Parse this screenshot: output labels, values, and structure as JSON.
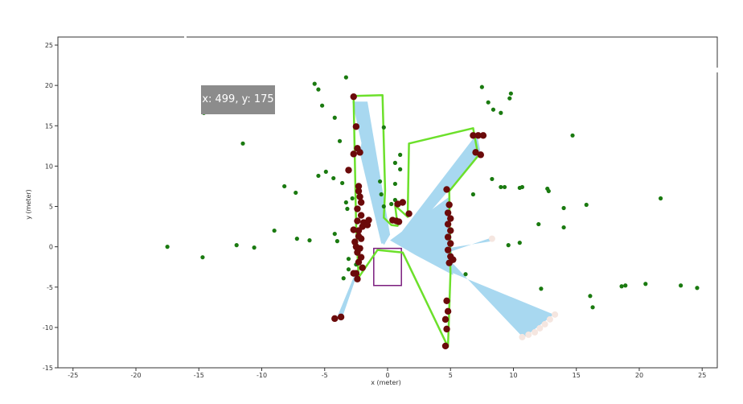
{
  "tooltip": {
    "text": "x: 499, y: 175"
  },
  "chart_data": {
    "type": "scatter",
    "xlabel": "x (meter)",
    "ylabel": "y (meter)",
    "xlim": [
      -26.2,
      26.2
    ],
    "ylim": [
      -15,
      26
    ],
    "xticks": [
      -25,
      -20,
      -15,
      -10,
      -5,
      0,
      5,
      10,
      15,
      20,
      25
    ],
    "yticks": [
      -15,
      -10,
      -5,
      0,
      5,
      10,
      15,
      20,
      25
    ],
    "grid": false,
    "colors": {
      "landmarks": "#1a7a10",
      "obstacles": "#6b0a0a",
      "path": "#6ce02b",
      "scan": "#a8d8f0",
      "robot": "#7b1d7e",
      "scan_end": "#f5e6e0"
    },
    "landmarks": [
      [
        -14.6,
        16.6
      ],
      [
        -11.5,
        12.8
      ],
      [
        -17.5,
        0
      ],
      [
        -14.7,
        -1.3
      ],
      [
        -12,
        0.2
      ],
      [
        -10.6,
        -0.1
      ],
      [
        -9,
        2
      ],
      [
        -8.2,
        7.5
      ],
      [
        -7.3,
        6.7
      ],
      [
        -7.2,
        1
      ],
      [
        -6.2,
        0.8
      ],
      [
        -5.8,
        20.2
      ],
      [
        -5.5,
        19.5
      ],
      [
        -5.2,
        17.5
      ],
      [
        -5.5,
        8.8
      ],
      [
        -4.9,
        9.3
      ],
      [
        -4.3,
        8.5
      ],
      [
        -4.2,
        16
      ],
      [
        -3.8,
        13.1
      ],
      [
        -3.3,
        21
      ],
      [
        -3.6,
        7.9
      ],
      [
        -3.3,
        5.5
      ],
      [
        -3.2,
        4.7
      ],
      [
        -2.8,
        6
      ],
      [
        -4,
        0.7
      ],
      [
        -3.1,
        -1.5
      ],
      [
        -3.1,
        -2.8
      ],
      [
        -3.5,
        -3.9
      ],
      [
        -4.2,
        1.6
      ],
      [
        -2.5,
        -2.2
      ],
      [
        -0.3,
        14.8
      ],
      [
        -0.6,
        8.1
      ],
      [
        -0.5,
        6.5
      ],
      [
        -0.3,
        5
      ],
      [
        0.6,
        10.4
      ],
      [
        0.6,
        7.8
      ],
      [
        1,
        11.4
      ],
      [
        1,
        9.6
      ],
      [
        0.3,
        5.3
      ],
      [
        0.6,
        5.8
      ],
      [
        7.5,
        19.8
      ],
      [
        8,
        17.9
      ],
      [
        8.4,
        17
      ],
      [
        9,
        16.6
      ],
      [
        9.7,
        18.4
      ],
      [
        9.8,
        19
      ],
      [
        8.3,
        8.4
      ],
      [
        9,
        7.4
      ],
      [
        9.3,
        7.4
      ],
      [
        10.5,
        7.3
      ],
      [
        10.7,
        7.4
      ],
      [
        12.7,
        7.2
      ],
      [
        12.8,
        6.9
      ],
      [
        14.7,
        13.8
      ],
      [
        14,
        4.8
      ],
      [
        15.8,
        5.2
      ],
      [
        12,
        2.8
      ],
      [
        14,
        2.4
      ],
      [
        9.6,
        0.2
      ],
      [
        10.5,
        0.5
      ],
      [
        12.2,
        -5.2
      ],
      [
        16.1,
        -6.1
      ],
      [
        16.3,
        -7.5
      ],
      [
        18.6,
        -4.9
      ],
      [
        18.9,
        -4.8
      ],
      [
        20.5,
        -4.6
      ],
      [
        21.7,
        6
      ],
      [
        23.3,
        -4.8
      ],
      [
        24.6,
        -5.1
      ],
      [
        6.2,
        -3.4
      ],
      [
        6.8,
        6.5
      ]
    ],
    "obstacles": [
      [
        -2.7,
        18.6
      ],
      [
        -2.5,
        14.9
      ],
      [
        -2.7,
        11.5
      ],
      [
        -2.2,
        11.7
      ],
      [
        -3.1,
        9.5
      ],
      [
        -2.4,
        12.2
      ],
      [
        -2.3,
        7.5
      ],
      [
        -2.3,
        6.9
      ],
      [
        -2.2,
        6.2
      ],
      [
        -2.1,
        5.5
      ],
      [
        -2.4,
        4.7
      ],
      [
        -2.1,
        3.9
      ],
      [
        -2.4,
        3.2
      ],
      [
        -1.9,
        3
      ],
      [
        -2,
        2.5
      ],
      [
        -2.3,
        2
      ],
      [
        -2.3,
        1.3
      ],
      [
        -2.6,
        0.6
      ],
      [
        -2.5,
        0
      ],
      [
        -2.4,
        -0.7
      ],
      [
        -2.1,
        -1.3
      ],
      [
        -2.3,
        -1.9
      ],
      [
        -2,
        -2.6
      ],
      [
        -2.5,
        -3.3
      ],
      [
        -2.4,
        -4
      ],
      [
        -1.6,
        2.7
      ],
      [
        -1.5,
        3.3
      ],
      [
        -2.7,
        2.1
      ],
      [
        -2.1,
        1
      ],
      [
        -2.2,
        -0.2
      ],
      [
        -2.7,
        -3.3
      ],
      [
        0.4,
        3.3
      ],
      [
        0.9,
        3.1
      ],
      [
        0.7,
        3.2
      ],
      [
        0.8,
        5.3
      ],
      [
        1.2,
        5.5
      ],
      [
        1.7,
        4.1
      ],
      [
        4.7,
        7.1
      ],
      [
        4.9,
        5.2
      ],
      [
        4.8,
        4.2
      ],
      [
        5,
        3.5
      ],
      [
        4.8,
        2.8
      ],
      [
        5,
        2
      ],
      [
        4.8,
        1.2
      ],
      [
        5,
        0.4
      ],
      [
        4.8,
        -0.4
      ],
      [
        5,
        -1.2
      ],
      [
        4.9,
        -2
      ],
      [
        5.2,
        -1.6
      ],
      [
        4.7,
        -6.7
      ],
      [
        4.8,
        -8
      ],
      [
        4.6,
        -9
      ],
      [
        4.7,
        -10.2
      ],
      [
        4.6,
        -12.3
      ],
      [
        6.8,
        13.8
      ],
      [
        7.2,
        13.8
      ],
      [
        7.6,
        13.8
      ],
      [
        7,
        11.7
      ],
      [
        7.4,
        11.4
      ],
      [
        -4.2,
        -8.9
      ],
      [
        -3.7,
        -8.7
      ]
    ],
    "path": [
      [
        -2.7,
        18.7
      ],
      [
        -0.4,
        18.8
      ],
      [
        -0.2,
        7
      ],
      [
        -0.3,
        3.6
      ],
      [
        0.3,
        2.7
      ],
      [
        0.8,
        2.6
      ],
      [
        0.6,
        5.1
      ],
      [
        1.6,
        3.7
      ],
      [
        1.7,
        12.8
      ],
      [
        6.8,
        14.7
      ],
      [
        7.2,
        11.3
      ],
      [
        4.9,
        6.9
      ],
      [
        5,
        -3.3
      ],
      [
        4.8,
        -12.4
      ],
      [
        1.2,
        -0.7
      ],
      [
        -0.8,
        -0.4
      ],
      [
        -2.3,
        -3.8
      ],
      [
        -2.5,
        2.6
      ],
      [
        -2.7,
        18.7
      ]
    ],
    "scan_polygons": [
      [
        [
          -0.3,
          0.2
        ],
        [
          -2.8,
          18
        ],
        [
          -1.6,
          18
        ],
        [
          0.2,
          1.5
        ]
      ],
      [
        [
          -0.5,
          0.4
        ],
        [
          -2.2,
          11.6
        ],
        [
          -1.9,
          14.7
        ],
        [
          -0.2,
          0.4
        ]
      ],
      [
        [
          0.2,
          0.8
        ],
        [
          4.9,
          6.2
        ],
        [
          5.2,
          -3.5
        ],
        [
          2.2,
          -1
        ]
      ],
      [
        [
          0.6,
          0.8
        ],
        [
          7.1,
          14
        ],
        [
          7.4,
          11.6
        ],
        [
          1.2,
          0.4
        ]
      ],
      [
        [
          5.1,
          -3.2
        ],
        [
          13.2,
          -8.4
        ],
        [
          10.8,
          -11.3
        ],
        [
          4.9,
          -1.6
        ]
      ],
      [
        [
          5,
          -0.6
        ],
        [
          8.2,
          1.1
        ],
        [
          8.3,
          0.7
        ],
        [
          5.1,
          -0.1
        ]
      ],
      [
        [
          -2.2,
          -2.4
        ],
        [
          -3.7,
          -9.2
        ],
        [
          -4,
          -8.7
        ],
        [
          -2.5,
          -3
        ]
      ]
    ],
    "robot_box": [
      [
        -1.1,
        -0.2
      ],
      [
        1.1,
        -0.2
      ],
      [
        1.1,
        -4.8
      ],
      [
        -1.1,
        -4.8
      ]
    ],
    "scan_ends": [
      [
        8.3,
        1
      ],
      [
        10.7,
        -11.2
      ],
      [
        11.2,
        -10.9
      ],
      [
        11.7,
        -10.6
      ],
      [
        12.1,
        -10.1
      ],
      [
        12.5,
        -9.6
      ],
      [
        12.9,
        -9
      ],
      [
        13.3,
        -8.4
      ]
    ]
  }
}
